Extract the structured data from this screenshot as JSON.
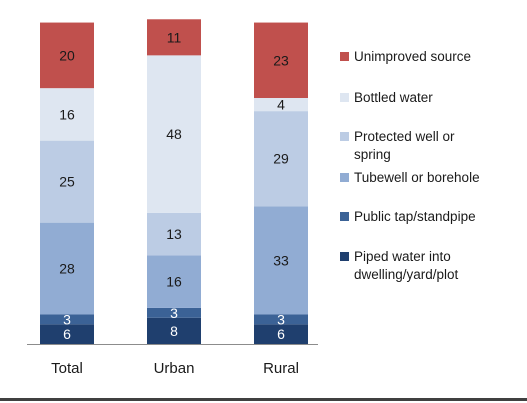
{
  "chart_data": {
    "type": "bar",
    "stacked": true,
    "orientation": "vertical",
    "categories": [
      "Total",
      "Urban",
      "Rural"
    ],
    "ylim": [
      0,
      100
    ],
    "grid": false,
    "legend_position": "right",
    "series": [
      {
        "name": "Piped water into dwelling/yard/plot",
        "legend_lines": [
          "Piped water into",
          "dwelling/yard/plot"
        ],
        "values": [
          6,
          8,
          6
        ],
        "color": "#1f3f6e",
        "label_color": "#ffffff"
      },
      {
        "name": "Public tap/standpipe",
        "legend_lines": [
          "Public tap/standpipe"
        ],
        "values": [
          3,
          3,
          3
        ],
        "color": "#3b6296",
        "label_color": "#ffffff"
      },
      {
        "name": "Tubewell or borehole",
        "legend_lines": [
          "Tubewell or borehole"
        ],
        "values": [
          28,
          16,
          33
        ],
        "color": "#91acd3",
        "label_color": "#1a1a1a"
      },
      {
        "name": "Protected well or spring",
        "legend_lines": [
          "Protected well or",
          "spring"
        ],
        "values": [
          25,
          13,
          29
        ],
        "color": "#bccce4",
        "label_color": "#1a1a1a"
      },
      {
        "name": "Bottled water",
        "legend_lines": [
          "Bottled water"
        ],
        "values": [
          16,
          48,
          4
        ],
        "color": "#dee6f1",
        "label_color": "#1a1a1a"
      },
      {
        "name": "Unimproved source",
        "legend_lines": [
          "Unimproved source"
        ],
        "values": [
          20,
          11,
          23
        ],
        "color": "#c0504d",
        "label_color": "#1a1a1a"
      }
    ]
  }
}
